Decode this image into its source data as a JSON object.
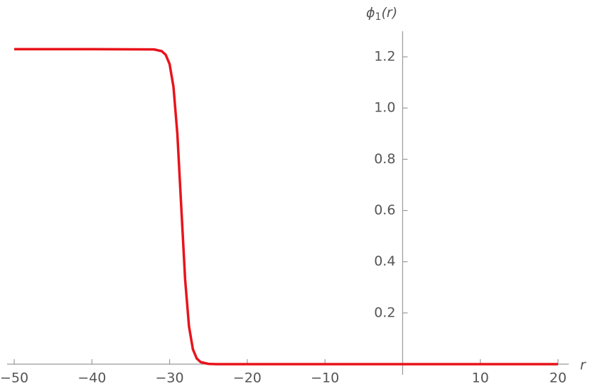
{
  "chart_data": {
    "type": "line",
    "x_label": "r",
    "y_label": {
      "symbol": "ϕ",
      "subscript": "1",
      "argument": "(r)"
    },
    "x": [
      -50,
      -40,
      -32,
      -31,
      -30.5,
      -30,
      -29.5,
      -29,
      -28.5,
      -28,
      -27.5,
      -27,
      -26.5,
      -26,
      -25,
      -24,
      -23,
      -20,
      -10,
      0,
      10,
      20
    ],
    "series": [
      {
        "color": "#e8141b",
        "values": [
          1.23,
          1.23,
          1.229,
          1.222,
          1.208,
          1.172,
          1.083,
          0.899,
          0.615,
          0.331,
          0.147,
          0.058,
          0.022,
          0.008,
          0.001,
          0,
          0,
          0,
          0,
          0,
          0,
          0
        ]
      }
    ],
    "xlim": [
      -50,
      20
    ],
    "ylim": [
      0,
      1.3
    ],
    "xticks": [
      {
        "value": -50,
        "label": "−50"
      },
      {
        "value": -40,
        "label": "−40"
      },
      {
        "value": -30,
        "label": "−30"
      },
      {
        "value": -20,
        "label": "−20"
      },
      {
        "value": -10,
        "label": "−10"
      },
      10,
      20
    ],
    "yticks": [
      0.2,
      0.4,
      0.6,
      0.8,
      {
        "value": 1,
        "label": "1.0"
      },
      1.2
    ],
    "grid": false
  }
}
